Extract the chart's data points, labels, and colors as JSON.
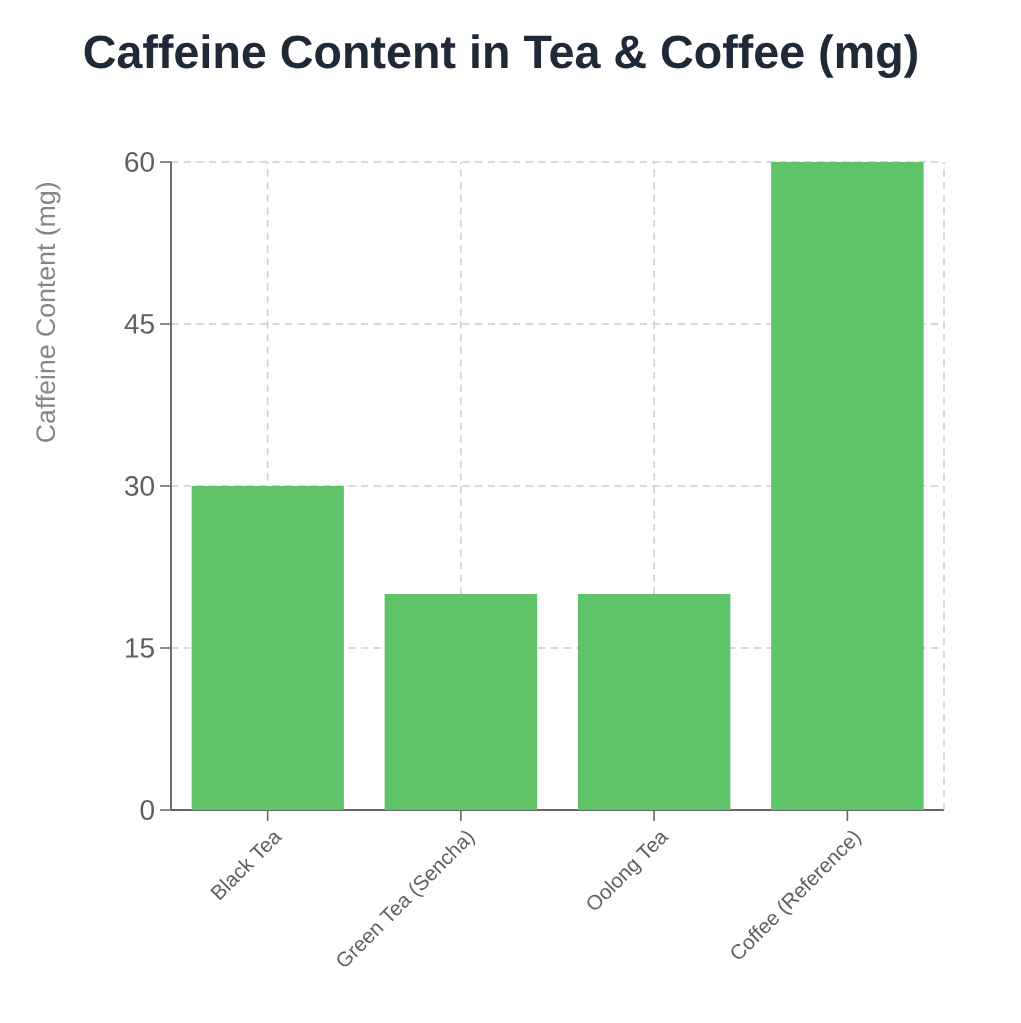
{
  "chart_data": {
    "type": "bar",
    "title": "Caffeine Content in Tea & Coffee (mg)",
    "ylabel": "Caffeine Content (mg)",
    "categories": [
      "Black Tea",
      "Green Tea (Sencha)",
      "Oolong Tea",
      "Coffee (Reference)"
    ],
    "values": [
      30,
      20,
      20,
      60
    ],
    "color": "#5fc36a",
    "ylim": [
      0,
      60
    ],
    "yticks": [
      0,
      15,
      30,
      45,
      60
    ],
    "grid": true
  }
}
